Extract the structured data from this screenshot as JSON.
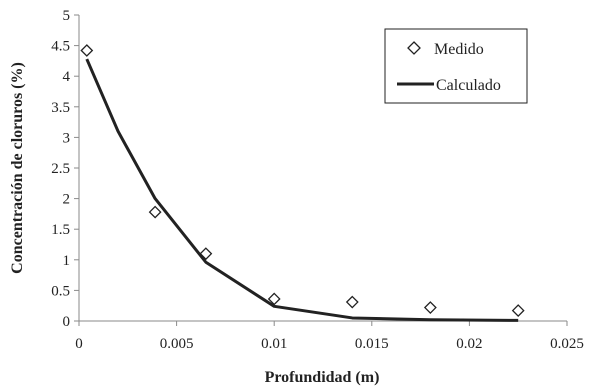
{
  "chart_data": {
    "type": "scatter",
    "xlabel": "Profundidad (m)",
    "ylabel": "Concentración de cloruros (%)",
    "xlim": [
      0,
      0.025
    ],
    "ylim": [
      0,
      5
    ],
    "x_ticks": [
      "0",
      "0.005",
      "0.01",
      "0.015",
      "0.02",
      "0.025"
    ],
    "y_ticks": [
      "0",
      "0.5",
      "1",
      "1.5",
      "2",
      "2.5",
      "3",
      "3.5",
      "4",
      "4.5",
      "5"
    ],
    "grid": false,
    "legend_position": "top-right",
    "series": [
      {
        "name": "Medido",
        "kind": "markers",
        "marker": "diamond",
        "color": "#222222",
        "points": [
          {
            "x": 0.0004,
            "y": 4.42
          },
          {
            "x": 0.0039,
            "y": 1.78
          },
          {
            "x": 0.0065,
            "y": 1.1
          },
          {
            "x": 0.01,
            "y": 0.36
          },
          {
            "x": 0.014,
            "y": 0.31
          },
          {
            "x": 0.018,
            "y": 0.22
          },
          {
            "x": 0.0225,
            "y": 0.17
          }
        ]
      },
      {
        "name": "Calculado",
        "kind": "line",
        "color": "#222222",
        "points": [
          {
            "x": 0.0004,
            "y": 4.28
          },
          {
            "x": 0.002,
            "y": 3.1
          },
          {
            "x": 0.0039,
            "y": 2.0
          },
          {
            "x": 0.0065,
            "y": 0.96
          },
          {
            "x": 0.01,
            "y": 0.24
          },
          {
            "x": 0.014,
            "y": 0.05
          },
          {
            "x": 0.018,
            "y": 0.02
          },
          {
            "x": 0.0225,
            "y": 0.01
          }
        ]
      }
    ]
  }
}
